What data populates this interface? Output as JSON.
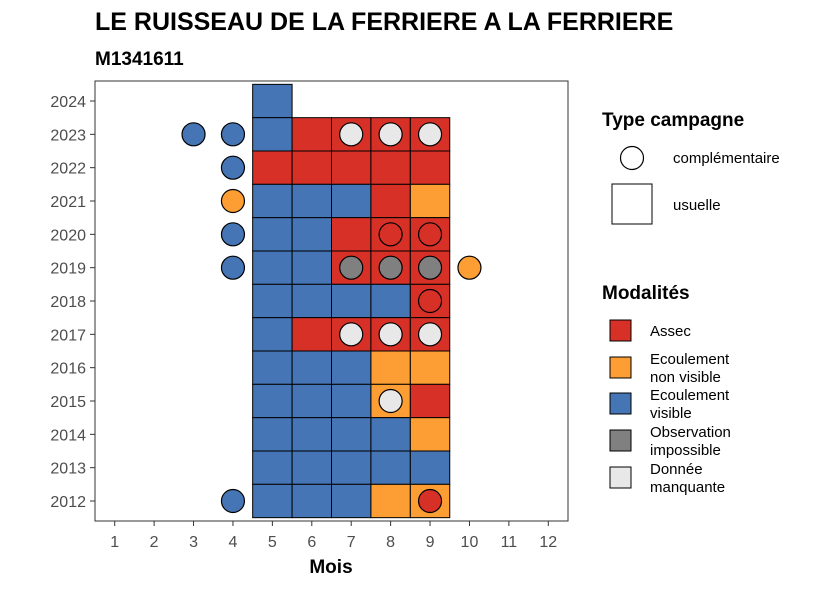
{
  "chart_data": {
    "type": "heatmap",
    "title": "LE RUISSEAU DE LA FERRIERE A LA FERRIERE",
    "subtitle": "M1341611",
    "xlabel": "Mois",
    "ylabel": "",
    "x_ticks": [
      "1",
      "2",
      "3",
      "4",
      "5",
      "6",
      "7",
      "8",
      "9",
      "10",
      "11",
      "12"
    ],
    "y_ticks": [
      "2012",
      "2013",
      "2014",
      "2015",
      "2016",
      "2017",
      "2018",
      "2019",
      "2020",
      "2021",
      "2022",
      "2023",
      "2024"
    ],
    "xlim": [
      0.5,
      12.5
    ],
    "ylim": [
      2011.4,
      2024.6
    ],
    "grid": false,
    "legend_position": "right",
    "colors": {
      "Assec": "#d73027",
      "Ecoulement non visible": "#fc9e33",
      "Ecoulement visible": "#4575b4",
      "Observation impossible": "#808080",
      "Donnée manquante": "#e8e8e8"
    },
    "usuelle": [
      {
        "year": 2024,
        "months": {
          "5": "Ecoulement visible"
        }
      },
      {
        "year": 2023,
        "months": {
          "5": "Ecoulement visible",
          "6": "Assec",
          "7": "Assec",
          "8": "Assec",
          "9": "Assec"
        }
      },
      {
        "year": 2022,
        "months": {
          "5": "Assec",
          "6": "Assec",
          "7": "Assec",
          "8": "Assec",
          "9": "Assec"
        }
      },
      {
        "year": 2021,
        "months": {
          "5": "Ecoulement visible",
          "6": "Ecoulement visible",
          "7": "Ecoulement visible",
          "8": "Assec",
          "9": "Ecoulement non visible"
        }
      },
      {
        "year": 2020,
        "months": {
          "5": "Ecoulement visible",
          "6": "Ecoulement visible",
          "7": "Assec",
          "8": "Assec",
          "9": "Assec"
        }
      },
      {
        "year": 2019,
        "months": {
          "5": "Ecoulement visible",
          "6": "Ecoulement visible",
          "7": "Assec",
          "8": "Assec",
          "9": "Assec"
        }
      },
      {
        "year": 2018,
        "months": {
          "5": "Ecoulement visible",
          "6": "Ecoulement visible",
          "7": "Ecoulement visible",
          "8": "Ecoulement visible",
          "9": "Assec"
        }
      },
      {
        "year": 2017,
        "months": {
          "5": "Ecoulement visible",
          "6": "Assec",
          "7": "Assec",
          "8": "Assec",
          "9": "Assec"
        }
      },
      {
        "year": 2016,
        "months": {
          "5": "Ecoulement visible",
          "6": "Ecoulement visible",
          "7": "Ecoulement visible",
          "8": "Ecoulement non visible",
          "9": "Ecoulement non visible"
        }
      },
      {
        "year": 2015,
        "months": {
          "5": "Ecoulement visible",
          "6": "Ecoulement visible",
          "7": "Ecoulement visible",
          "8": "Ecoulement non visible",
          "9": "Assec"
        }
      },
      {
        "year": 2014,
        "months": {
          "5": "Ecoulement visible",
          "6": "Ecoulement visible",
          "7": "Ecoulement visible",
          "8": "Ecoulement visible",
          "9": "Ecoulement non visible"
        }
      },
      {
        "year": 2013,
        "months": {
          "5": "Ecoulement visible",
          "6": "Ecoulement visible",
          "7": "Ecoulement visible",
          "8": "Ecoulement visible",
          "9": "Ecoulement visible"
        }
      },
      {
        "year": 2012,
        "months": {
          "5": "Ecoulement visible",
          "6": "Ecoulement visible",
          "7": "Ecoulement visible",
          "8": "Ecoulement non visible",
          "9": "Ecoulement non visible"
        }
      }
    ],
    "complementaire": [
      {
        "year": 2023,
        "month": 3,
        "value": "Ecoulement visible"
      },
      {
        "year": 2023,
        "month": 4,
        "value": "Ecoulement visible"
      },
      {
        "year": 2023,
        "month": 7,
        "value": "Donnée manquante"
      },
      {
        "year": 2023,
        "month": 8,
        "value": "Donnée manquante"
      },
      {
        "year": 2023,
        "month": 9,
        "value": "Donnée manquante"
      },
      {
        "year": 2022,
        "month": 4,
        "value": "Ecoulement visible"
      },
      {
        "year": 2021,
        "month": 4,
        "value": "Ecoulement non visible"
      },
      {
        "year": 2020,
        "month": 4,
        "value": "Ecoulement visible"
      },
      {
        "year": 2020,
        "month": 8,
        "value": "Assec"
      },
      {
        "year": 2020,
        "month": 9,
        "value": "Assec"
      },
      {
        "year": 2019,
        "month": 4,
        "value": "Ecoulement visible"
      },
      {
        "year": 2019,
        "month": 7,
        "value": "Observation impossible"
      },
      {
        "year": 2019,
        "month": 8,
        "value": "Observation impossible"
      },
      {
        "year": 2019,
        "month": 9,
        "value": "Observation impossible"
      },
      {
        "year": 2019,
        "month": 10,
        "value": "Ecoulement non visible"
      },
      {
        "year": 2018,
        "month": 9,
        "value": "Assec"
      },
      {
        "year": 2017,
        "month": 7,
        "value": "Donnée manquante"
      },
      {
        "year": 2017,
        "month": 8,
        "value": "Donnée manquante"
      },
      {
        "year": 2017,
        "month": 9,
        "value": "Donnée manquante"
      },
      {
        "year": 2015,
        "month": 8,
        "value": "Donnée manquante"
      },
      {
        "year": 2012,
        "month": 4,
        "value": "Ecoulement visible"
      },
      {
        "year": 2012,
        "month": 9,
        "value": "Assec"
      }
    ],
    "legend_type": {
      "title": "Type campagne",
      "items": [
        "complémentaire",
        "usuelle"
      ]
    },
    "legend_modalites": {
      "title": "Modalités",
      "items": [
        {
          "key": "Assec",
          "lines": [
            "Assec"
          ]
        },
        {
          "key": "Ecoulement non visible",
          "lines": [
            "Ecoulement",
            "non visible"
          ]
        },
        {
          "key": "Ecoulement visible",
          "lines": [
            "Ecoulement",
            "visible"
          ]
        },
        {
          "key": "Observation impossible",
          "lines": [
            "Observation",
            "impossible"
          ]
        },
        {
          "key": "Donnée manquante",
          "lines": [
            "Donnée",
            "manquante"
          ]
        }
      ]
    }
  }
}
